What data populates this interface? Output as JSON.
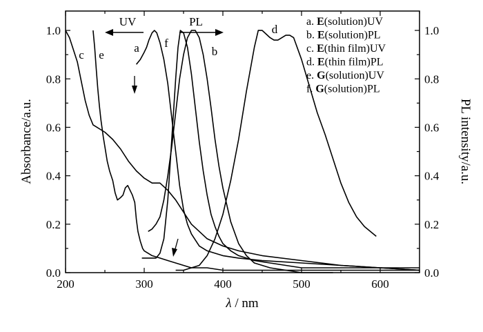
{
  "chart_data": {
    "type": "line",
    "title": "",
    "xlabel_symbol": "λ",
    "xlabel_unit": "/ nm",
    "ylabel": "Absorbance/a.u.",
    "y2label": "PL intensity/a.u.",
    "xlim": [
      200,
      650
    ],
    "ylim": [
      0,
      1.08
    ],
    "y2lim": [
      0,
      1.08
    ],
    "x_ticks": [
      "200",
      "300",
      "400",
      "500",
      "600"
    ],
    "y_ticks": [
      "0.0",
      "0.2",
      "0.4",
      "0.6",
      "0.8",
      "1.0"
    ],
    "y2_ticks": [
      "0.0",
      "0.2",
      "0.4",
      "0.6",
      "0.8",
      "1.0"
    ],
    "grid": false,
    "legend_position": "top-right",
    "legend": [
      {
        "prefix": "a. ",
        "bold": "E",
        "rest": "(solution)UV"
      },
      {
        "prefix": "b. ",
        "bold": "E",
        "rest": "(solution)PL"
      },
      {
        "prefix": "c. ",
        "bold": "E",
        "rest": "(thin film)UV"
      },
      {
        "prefix": "d. ",
        "bold": "E",
        "rest": "(thin film)PL"
      },
      {
        "prefix": "e. ",
        "bold": "G",
        "rest": "(solution)UV"
      },
      {
        "prefix": "f. ",
        "bold": "G",
        "rest": "(solution)PL"
      }
    ],
    "annotations": {
      "uv": "UV",
      "pl": "PL"
    },
    "series": [
      {
        "label": "a",
        "color": "#000000",
        "x": [
          290,
          295,
          300,
          303,
          306,
          310,
          313,
          316,
          320,
          325,
          330,
          335,
          340,
          345,
          350,
          355,
          360,
          370,
          380,
          390,
          400,
          420,
          450,
          500,
          550,
          600,
          650
        ],
        "y": [
          0.86,
          0.88,
          0.91,
          0.93,
          0.96,
          0.99,
          1.0,
          0.99,
          0.95,
          0.88,
          0.78,
          0.64,
          0.5,
          0.36,
          0.26,
          0.2,
          0.16,
          0.11,
          0.09,
          0.08,
          0.07,
          0.06,
          0.05,
          0.04,
          0.03,
          0.02,
          0.01
        ]
      },
      {
        "label": "b",
        "color": "#000000",
        "x": [
          305,
          310,
          315,
          320,
          325,
          330,
          335,
          340,
          345,
          350,
          355,
          360,
          365,
          370,
          375,
          380,
          385,
          390,
          395,
          400,
          410,
          420,
          430,
          440,
          450,
          460,
          480,
          500,
          520,
          540
        ],
        "y": [
          0.17,
          0.18,
          0.2,
          0.23,
          0.3,
          0.4,
          0.52,
          0.66,
          0.8,
          0.9,
          0.97,
          1.0,
          1.0,
          0.97,
          0.9,
          0.8,
          0.68,
          0.55,
          0.44,
          0.35,
          0.21,
          0.12,
          0.07,
          0.04,
          0.03,
          0.02,
          0.01,
          0.0,
          0.0,
          0.0
        ]
      },
      {
        "label": "c",
        "color": "#000000",
        "x": [
          200,
          205,
          210,
          215,
          220,
          225,
          230,
          235,
          240,
          245,
          250,
          260,
          270,
          280,
          290,
          300,
          310,
          320,
          330,
          340,
          350,
          360,
          370,
          380,
          400,
          420,
          450,
          500,
          550,
          600,
          650
        ],
        "y": [
          1.0,
          0.97,
          0.92,
          0.87,
          0.79,
          0.71,
          0.65,
          0.61,
          0.6,
          0.59,
          0.58,
          0.55,
          0.51,
          0.46,
          0.42,
          0.39,
          0.37,
          0.37,
          0.34,
          0.3,
          0.25,
          0.2,
          0.17,
          0.14,
          0.11,
          0.09,
          0.07,
          0.05,
          0.03,
          0.02,
          0.01
        ]
      },
      {
        "label": "d",
        "color": "#000000",
        "x": [
          340,
          350,
          360,
          370,
          380,
          390,
          400,
          410,
          420,
          430,
          440,
          445,
          450,
          460,
          465,
          470,
          480,
          485,
          490,
          500,
          510,
          520,
          530,
          540,
          550,
          560,
          570,
          580,
          595
        ],
        "y": [
          0.01,
          0.01,
          0.02,
          0.03,
          0.07,
          0.14,
          0.24,
          0.38,
          0.55,
          0.75,
          0.93,
          1.0,
          1.0,
          0.97,
          0.96,
          0.96,
          0.98,
          0.98,
          0.97,
          0.88,
          0.77,
          0.66,
          0.57,
          0.47,
          0.37,
          0.29,
          0.23,
          0.19,
          0.15
        ]
      },
      {
        "label": "e",
        "color": "#000000",
        "x": [
          235,
          237,
          239,
          241,
          243,
          245,
          248,
          250,
          253,
          256,
          260,
          263,
          266,
          270,
          273,
          276,
          279,
          282,
          285,
          288,
          290,
          292,
          295,
          298,
          300,
          305,
          310,
          320,
          330,
          340,
          350,
          360,
          380,
          400,
          450,
          500,
          550,
          600,
          650
        ],
        "y": [
          1.0,
          0.93,
          0.84,
          0.76,
          0.69,
          0.63,
          0.56,
          0.52,
          0.46,
          0.42,
          0.38,
          0.33,
          0.3,
          0.31,
          0.32,
          0.35,
          0.36,
          0.34,
          0.32,
          0.29,
          0.22,
          0.17,
          0.13,
          0.1,
          0.09,
          0.08,
          0.07,
          0.06,
          0.05,
          0.04,
          0.03,
          0.02,
          0.02,
          0.01,
          0.01,
          0.01,
          0.01,
          0.01,
          0.01
        ]
      },
      {
        "label": "f",
        "color": "#000000",
        "x": [
          297,
          305,
          315,
          320,
          325,
          330,
          335,
          340,
          343,
          346,
          350,
          355,
          360,
          365,
          370,
          375,
          380,
          385,
          390,
          395,
          400,
          410,
          420,
          430,
          440,
          460,
          480,
          500,
          550,
          600,
          650
        ],
        "y": [
          0.06,
          0.06,
          0.06,
          0.08,
          0.14,
          0.3,
          0.55,
          0.8,
          0.93,
          1.0,
          0.99,
          0.93,
          0.82,
          0.68,
          0.54,
          0.42,
          0.32,
          0.24,
          0.19,
          0.15,
          0.12,
          0.09,
          0.07,
          0.06,
          0.05,
          0.04,
          0.03,
          0.02,
          0.02,
          0.02,
          0.02
        ]
      }
    ]
  }
}
